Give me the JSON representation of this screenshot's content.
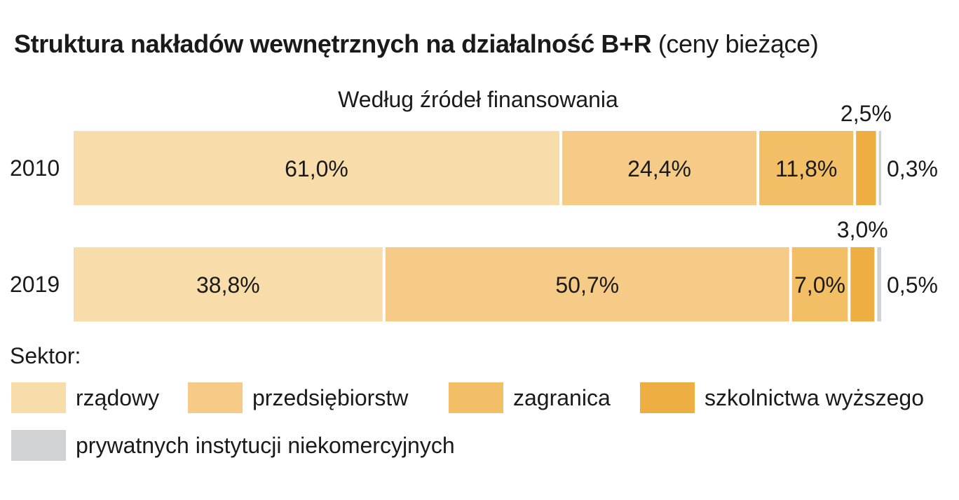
{
  "title": {
    "bold": "Struktura nakładów wewnętrznych na działalność B+R",
    "normal": "(ceny bieżące)"
  },
  "subtitle": "Według źródeł finansowania",
  "legend_title": "Sektor:",
  "chart_data": {
    "type": "bar",
    "orientation": "horizontal",
    "stacked": "percent",
    "title": "Struktura nakładów wewnętrznych na działalność B+R (ceny bieżące)",
    "subtitle": "Według źródeł finansowania",
    "categories": [
      "2010",
      "2019"
    ],
    "series": [
      {
        "name": "rządowy",
        "color": "#f8dcaa",
        "values": [
          61.0,
          38.8
        ],
        "labels": [
          "61,0%",
          "38,8%"
        ]
      },
      {
        "name": "przedsiębiorstw",
        "color": "#f6cb88",
        "values": [
          24.4,
          50.7
        ],
        "labels": [
          "24,4%",
          "50,7%"
        ]
      },
      {
        "name": "zagranica",
        "color": "#f3bf66",
        "values": [
          11.8,
          7.0
        ],
        "labels": [
          "11,8%",
          "7,0%"
        ]
      },
      {
        "name": "szkolnictwa wyższego",
        "color": "#eeae41",
        "values": [
          2.5,
          3.0
        ],
        "labels": [
          "2,5%",
          "3,0%"
        ]
      },
      {
        "name": "prywatnych instytucji niekomercyjnych",
        "color": "#d1d2d4",
        "values": [
          0.3,
          0.5
        ],
        "labels": [
          "0,3%",
          "0,5%"
        ]
      }
    ],
    "xlim": [
      0,
      100
    ],
    "grid": false,
    "legend_position": "bottom"
  }
}
